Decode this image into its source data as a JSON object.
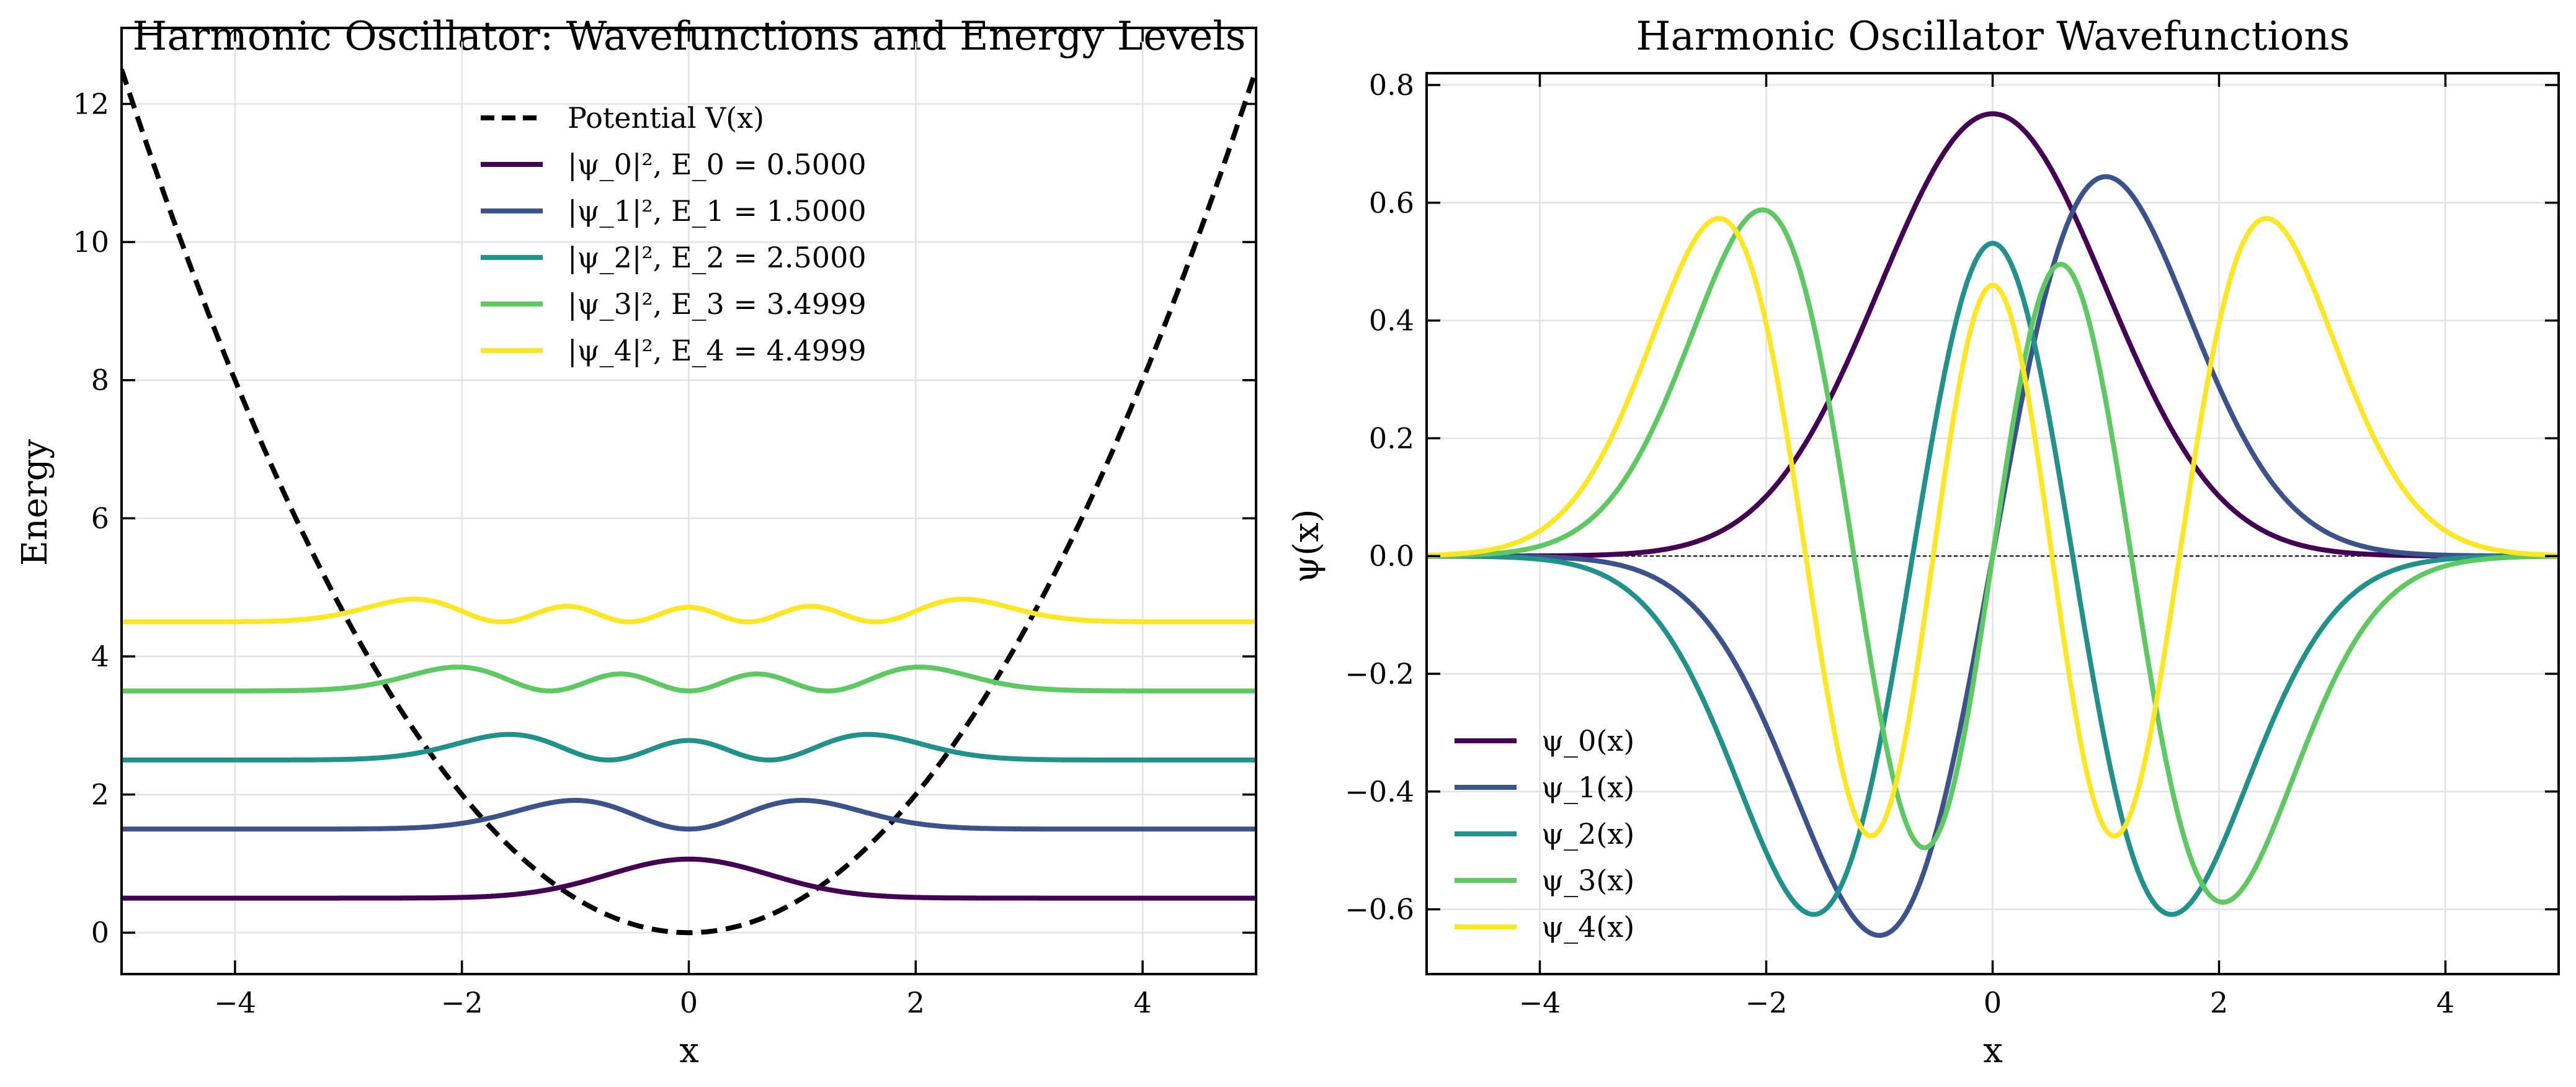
{
  "chart_data": [
    {
      "type": "line",
      "title": "Harmonic Oscillator: Wavefunctions and Energy Levels",
      "xlabel": "x",
      "ylabel": "Energy",
      "xlim": [
        -5,
        5
      ],
      "ylim": [
        -0.6,
        13.1
      ],
      "xticks": [
        -4,
        -2,
        0,
        2,
        4
      ],
      "xtick_labels": [
        "−4",
        "−2",
        "0",
        "2",
        "4"
      ],
      "yticks": [
        0,
        2,
        4,
        6,
        8,
        10,
        12
      ],
      "ytick_labels": [
        "0",
        "2",
        "4",
        "6",
        "8",
        "10",
        "12"
      ],
      "grid": true,
      "legend_position": "upper-center",
      "series": [
        {
          "name": "Potential V(x)",
          "color": "#000000",
          "dashed": true,
          "kind": "potential",
          "formula": "V(x) = 0.5·x²"
        },
        {
          "name": "|ψ_0|², E_0 = 0.5000",
          "color": "#440154",
          "kind": "density",
          "n": 0,
          "energy": 0.5,
          "formula": "E_n + |ψ_n(x)|²"
        },
        {
          "name": "|ψ_1|², E_1 = 1.5000",
          "color": "#3b528b",
          "kind": "density",
          "n": 1,
          "energy": 1.5,
          "formula": "E_n + |ψ_n(x)|²"
        },
        {
          "name": "|ψ_2|², E_2 = 2.5000",
          "color": "#21918c",
          "kind": "density",
          "n": 2,
          "energy": 2.5,
          "formula": "E_n + |ψ_n(x)|²"
        },
        {
          "name": "|ψ_3|², E_3 = 3.4999",
          "color": "#5ec962",
          "kind": "density",
          "n": 3,
          "energy": 3.4999,
          "formula": "E_n + |ψ_n(x)|²"
        },
        {
          "name": "|ψ_4|², E_4 = 4.4999",
          "color": "#fde725",
          "kind": "density",
          "n": 4,
          "energy": 4.4999,
          "formula": "E_n + |ψ_n(x)|²"
        }
      ]
    },
    {
      "type": "line",
      "title": "Harmonic Oscillator Wavefunctions",
      "xlabel": "x",
      "ylabel": "ψ(x)",
      "xlim": [
        -5,
        5
      ],
      "ylim": [
        -0.71,
        0.82
      ],
      "xticks": [
        -4,
        -2,
        0,
        2,
        4
      ],
      "xtick_labels": [
        "−4",
        "−2",
        "0",
        "2",
        "4"
      ],
      "yticks": [
        -0.6,
        -0.4,
        -0.2,
        0.0,
        0.2,
        0.4,
        0.6,
        0.8
      ],
      "ytick_labels": [
        "−0.6",
        "−0.4",
        "−0.2",
        "0.0",
        "0.2",
        "0.4",
        "0.6",
        "0.8"
      ],
      "grid": true,
      "zero_line": true,
      "legend_position": "lower-left",
      "series": [
        {
          "name": "ψ_0(x)",
          "color": "#440154",
          "n": 0,
          "sign": 1,
          "formula": "ψ_n(x)"
        },
        {
          "name": "ψ_1(x)",
          "color": "#3b528b",
          "n": 1,
          "sign": 1,
          "formula": "ψ_n(x)"
        },
        {
          "name": "ψ_2(x)",
          "color": "#21918c",
          "n": 2,
          "sign": -1,
          "formula": "ψ_n(x)"
        },
        {
          "name": "ψ_3(x)",
          "color": "#5ec962",
          "n": 3,
          "sign": -1,
          "formula": "ψ_n(x)"
        },
        {
          "name": "ψ_4(x)",
          "color": "#fde725",
          "n": 4,
          "sign": 1,
          "formula": "ψ_n(x)"
        }
      ]
    }
  ]
}
